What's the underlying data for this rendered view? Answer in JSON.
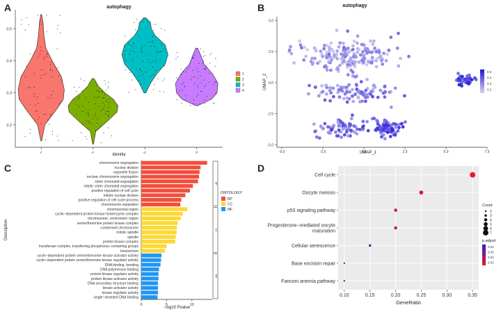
{
  "panels": {
    "A": {
      "letter": "A"
    },
    "B": {
      "letter": "B"
    },
    "C": {
      "letter": "C"
    },
    "D": {
      "letter": "D"
    }
  },
  "chart_data": [
    {
      "id": "A",
      "type": "violin",
      "title": "autophagy",
      "xlabel": "Identity",
      "ylabel": "",
      "categories": [
        "1",
        "2",
        "3",
        "4"
      ],
      "x_tick_labels": [
        "1",
        "2",
        "3",
        "4"
      ],
      "colors": [
        "#F8766D",
        "#7CAE00",
        "#00BFC4",
        "#C77CFF"
      ],
      "ylim": [
        0.13,
        0.56
      ],
      "yticks": [
        0.2,
        0.3,
        0.4,
        0.5
      ],
      "violins": [
        {
          "min": 0.15,
          "max": 0.545,
          "profile": [
            [
              0.15,
              0.005
            ],
            [
              0.2,
              0.04
            ],
            [
              0.25,
              0.17
            ],
            [
              0.28,
              0.24
            ],
            [
              0.31,
              0.25
            ],
            [
              0.35,
              0.22
            ],
            [
              0.4,
              0.12
            ],
            [
              0.44,
              0.05
            ],
            [
              0.48,
              0.03
            ],
            [
              0.52,
              0.02
            ],
            [
              0.545,
              0.005
            ]
          ]
        },
        {
          "min": 0.14,
          "max": 0.345,
          "profile": [
            [
              0.14,
              0.005
            ],
            [
              0.18,
              0.03
            ],
            [
              0.21,
              0.15
            ],
            [
              0.24,
              0.26
            ],
            [
              0.26,
              0.27
            ],
            [
              0.28,
              0.22
            ],
            [
              0.3,
              0.13
            ],
            [
              0.32,
              0.06
            ],
            [
              0.345,
              0.01
            ]
          ]
        },
        {
          "min": 0.3,
          "max": 0.535,
          "profile": [
            [
              0.3,
              0.01
            ],
            [
              0.33,
              0.06
            ],
            [
              0.36,
              0.13
            ],
            [
              0.39,
              0.22
            ],
            [
              0.42,
              0.25
            ],
            [
              0.45,
              0.22
            ],
            [
              0.48,
              0.11
            ],
            [
              0.5,
              0.07
            ],
            [
              0.52,
              0.06
            ],
            [
              0.535,
              0.01
            ]
          ]
        },
        {
          "min": 0.26,
          "max": 0.44,
          "profile": [
            [
              0.26,
              0.01
            ],
            [
              0.28,
              0.16
            ],
            [
              0.3,
              0.22
            ],
            [
              0.33,
              0.23
            ],
            [
              0.36,
              0.17
            ],
            [
              0.39,
              0.08
            ],
            [
              0.42,
              0.04
            ],
            [
              0.44,
              0.01
            ]
          ]
        }
      ],
      "legend": {
        "title": "",
        "entries": [
          "1",
          "2",
          "3",
          "4"
        ],
        "position": "right"
      }
    },
    {
      "id": "B",
      "type": "scatter",
      "title": "autophagy",
      "xlabel": "UMAP_1",
      "ylabel": "UMAP_2",
      "xlim": [
        -5.3,
        7.5
      ],
      "ylim": [
        -5.2,
        5.3
      ],
      "xticks": [
        -5.0,
        -2.5,
        0.0,
        2.5,
        5.0,
        7.5
      ],
      "xtick_labels": [
        "-5.0",
        "-2.5",
        "0.0",
        "2.5",
        "5.0",
        "7.5"
      ],
      "yticks": [
        -5.0,
        -2.5,
        0.0,
        2.5,
        5.0
      ],
      "ytick_labels": [
        "-5.0",
        "-2.5",
        "0.0",
        "2.5",
        "5.0"
      ],
      "color_scale": {
        "low": "#d8d4ee",
        "high": "#2014d8",
        "ticks": [
          "0.5",
          "0.4",
          "0.3",
          "0.2"
        ]
      },
      "clusters": [
        {
          "name": "upper band",
          "cx": -1.2,
          "cy": 2.2,
          "sx": 2.6,
          "sy": 1.1,
          "n": 190,
          "score": 0.28
        },
        {
          "name": "middle band",
          "cx": -0.5,
          "cy": -0.8,
          "sx": 2.2,
          "sy": 0.7,
          "n": 90,
          "score": 0.33
        },
        {
          "name": "lower left",
          "cx": -1.6,
          "cy": -3.7,
          "sx": 1.4,
          "sy": 0.6,
          "n": 70,
          "score": 0.36
        },
        {
          "name": "lower right",
          "cx": 1.4,
          "cy": -3.6,
          "sx": 0.8,
          "sy": 0.6,
          "n": 70,
          "score": 0.42
        },
        {
          "name": "isolated cluster",
          "cx": 6.2,
          "cy": 0.2,
          "sx": 0.45,
          "sy": 0.35,
          "n": 45,
          "score": 0.45
        }
      ]
    },
    {
      "id": "C",
      "type": "bar",
      "orientation": "horizontal",
      "xlabel": "−log10 Pvalue",
      "ylabel": "Description",
      "xlim": [
        0,
        14
      ],
      "xticks": [
        0,
        5,
        10
      ],
      "legend": {
        "title": "ONTOLOGY",
        "entries": [
          "BP",
          "CC",
          "MF"
        ],
        "colors": [
          "#F24E3C",
          "#FDD835",
          "#2196F3"
        ],
        "position": "right"
      },
      "facet_labels": [
        "BP",
        "CC",
        "MF"
      ],
      "series": [
        {
          "name": "BP",
          "color": "#F24E3C",
          "categories": [
            "chromosome segregation",
            "nuclear division",
            "organelle fission",
            "nuclear chromosome segregation",
            "sister chromatid segregation",
            "mitotic sister chromatid segregation",
            "positive regulation of cell cycle",
            "mitotic nuclear division",
            "positive regulation of cell cycle process",
            "chromosome separation"
          ],
          "values": [
            13.0,
            11.7,
            11.5,
            11.4,
            11.2,
            10.2,
            9.6,
            8.7,
            7.9,
            7.7
          ]
        },
        {
          "name": "CC",
          "color": "#FDD835",
          "categories": [
            "chromosomal region",
            "cyclin−dependent protein kinase holoenzyme complex",
            "chromosome, centromeric region",
            "serine/threonine protein kinase complex",
            "condensed chromosome",
            "mitotic spindle",
            "spindle",
            "protein kinase complex",
            "transferase complex, transferring phosphorus−containing groups",
            "kinetochore"
          ],
          "values": [
            9.1,
            8.2,
            7.8,
            7.2,
            7.0,
            7.0,
            6.8,
            6.7,
            5.0,
            4.7
          ]
        },
        {
          "name": "MF",
          "color": "#2196F3",
          "categories": [
            "cyclin−dependent protein serine/threonine kinase activator activity",
            "cyclin−dependent protein serine/threonine kinase regulator activity",
            "DNA binding, bending",
            "DNA polymerase binding",
            "protein kinase regulator activity",
            "protein kinase activator activity",
            "DNA secondary structure binding",
            "kinase activator activity",
            "kinase regulator activity",
            "single−stranded DNA binding"
          ],
          "values": [
            4.0,
            3.9,
            3.8,
            3.5,
            3.4,
            3.4,
            3.3,
            3.3,
            3.3,
            3.2
          ]
        }
      ]
    },
    {
      "id": "D",
      "type": "dot",
      "xlabel": "GeneRatio",
      "ylabel": "",
      "xlim": [
        0.088,
        0.362
      ],
      "xticks": [
        0.1,
        0.15,
        0.2,
        0.25,
        0.3,
        0.35
      ],
      "xtick_labels": [
        "0.10",
        "0.15",
        "0.20",
        "0.25",
        "0.30",
        "0.35"
      ],
      "categories": [
        "Cell cycle",
        "Oocyte meiosis",
        "p53 signaling pathway",
        "Progesterone−mediated oocyte maturation",
        "Cellular senescence",
        "Base excision repair",
        "Fanconi anemia pathway"
      ],
      "category_lines": [
        [
          "Cell cycle"
        ],
        [
          "Oocyte meiosis"
        ],
        [
          "p53 signaling pathway"
        ],
        [
          "Progesterone−mediated oocyte",
          "maturation"
        ],
        [
          "Cellular senescence"
        ],
        [
          "Base excision repair"
        ],
        [
          "Fanconi anemia pathway"
        ]
      ],
      "gene_ratio": [
        0.35,
        0.25,
        0.2,
        0.2,
        0.15,
        0.1,
        0.1
      ],
      "count": [
        7,
        5,
        4,
        4,
        3,
        2,
        2
      ],
      "p_adjust": [
        0.001,
        0.004,
        0.006,
        0.006,
        0.035,
        0.025,
        0.042
      ],
      "legend_count": {
        "title": "Count",
        "entries": [
          2,
          3,
          4,
          5,
          6,
          7
        ]
      },
      "legend_padjust": {
        "title": "p.adjust",
        "ticks": [
          "0.04",
          "0.03",
          "0.02",
          "0.01"
        ],
        "low": "#E8192C",
        "high": "#2A1BD0"
      }
    }
  ]
}
